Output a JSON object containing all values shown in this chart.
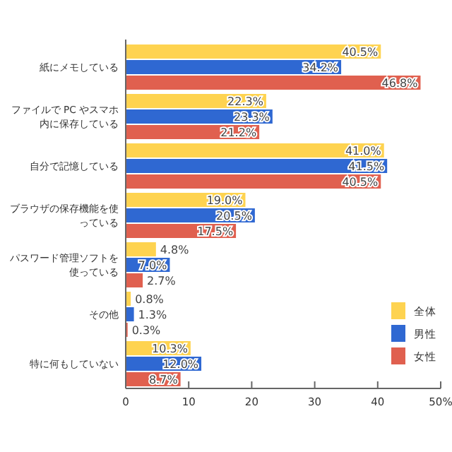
{
  "chart_data": {
    "type": "bar",
    "orientation": "horizontal",
    "categories": [
      "紙にメモしている",
      "ファイルで PC やスマホ内に保存している",
      "自分で記憶している",
      "ブラウザの保存機能を使っている",
      "パスワード管理ソフトを使っている",
      "その他",
      "特に何もしていない"
    ],
    "series": [
      {
        "name": "全体",
        "color": "#fed350",
        "values": [
          40.5,
          22.3,
          41.0,
          19.0,
          4.8,
          0.8,
          10.3
        ],
        "value_labels": [
          "40.5%",
          "22.3%",
          "41.0%",
          "19.0%",
          "4.8%",
          "0.8%",
          "10.3%"
        ]
      },
      {
        "name": "男性",
        "color": "#2f68d2",
        "values": [
          34.2,
          23.3,
          41.5,
          20.5,
          7.0,
          1.3,
          12.0
        ],
        "value_labels": [
          "34.2%",
          "23.3%",
          "41.5%",
          "20.5%",
          "7.0%",
          "1.3%",
          "12.0%"
        ]
      },
      {
        "name": "女性",
        "color": "#e0604f",
        "values": [
          46.8,
          21.2,
          40.5,
          17.5,
          2.7,
          0.3,
          8.7
        ],
        "value_labels": [
          "46.8%",
          "21.2%",
          "40.5%",
          "17.5%",
          "2.7%",
          "0.3%",
          "8.7%"
        ]
      }
    ],
    "xlim": [
      0,
      50
    ],
    "xticks": [
      0,
      10,
      20,
      30,
      40,
      {
        "value": 50,
        "label": "50%"
      }
    ],
    "legend": "bottom right",
    "grid": false
  }
}
